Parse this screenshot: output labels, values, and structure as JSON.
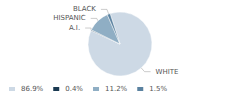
{
  "chart_data": {
    "type": "pie",
    "categories": [
      "WHITE",
      "A.I.",
      "HISPANIC",
      "BLACK"
    ],
    "values": [
      86.9,
      0.4,
      11.2,
      1.5
    ],
    "value_labels": [
      "86.9%",
      "0.4%",
      "11.2%",
      "1.5%"
    ],
    "colors": [
      "#cdd9e5",
      "#1a3a52",
      "#8faec4",
      "#5b82a0"
    ],
    "legend": "lower left"
  }
}
